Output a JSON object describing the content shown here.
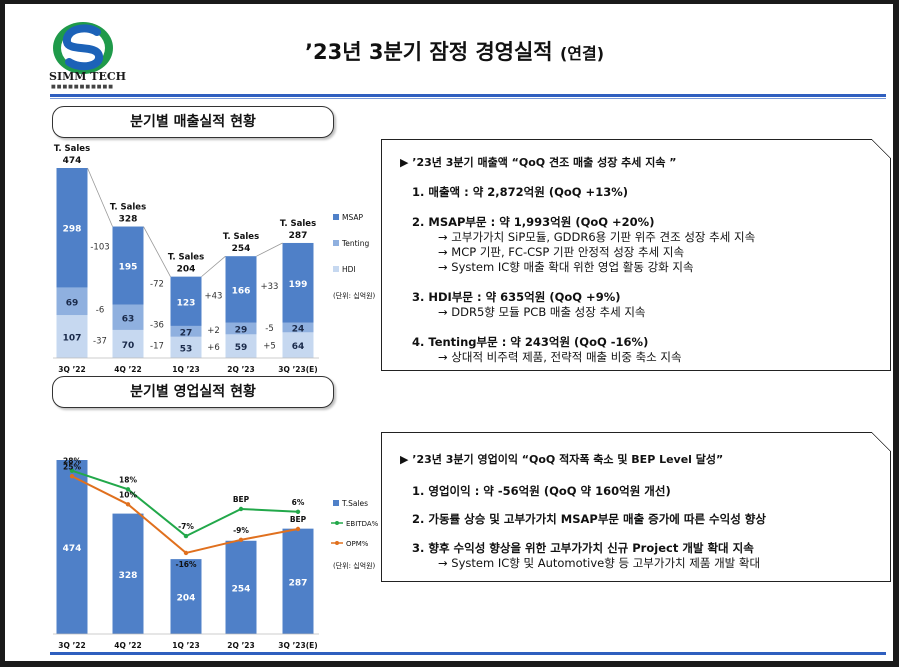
{
  "header": {
    "logo_text": "SIMM TECH",
    "title": "’23년 3분기 잠정 경영실적",
    "title_suffix": "(연결)"
  },
  "sales_section": {
    "heading": "분기별 매출실적 현황",
    "unit": "(단위: 십억원)"
  },
  "op_section": {
    "heading": "분기별 영업실적 현황",
    "unit": "(단위: 십억원)"
  },
  "sales_panel": {
    "headline": "’23년 3분기 매출액 “QoQ 견조 매출 성장 추세 지속 ”",
    "items": [
      {
        "title": "1. 매출액 : 약 2,872억원 (QoQ +13%)",
        "subs": []
      },
      {
        "title": "2. MSAP부문    : 약 1,993억원 (QoQ +20%)",
        "subs": [
          "→ 고부가가치 SiP모듈, GDDR6용 기판 위주 견조 성장 추세 지속",
          "→ MCP 기판, FC-CSP 기판 안정적 성장 추세 지속",
          "→ System IC향 매출 확대 위한 영업 활동 강화 지속"
        ]
      },
      {
        "title": "3. HDI부문      : 약     635억원 (QoQ +9%)",
        "subs": [
          "→ DDR5향 모듈 PCB 매출 성장 추세 지속"
        ]
      },
      {
        "title": "4. Tenting부문 : 약     243억원 (QoQ  -16%)",
        "subs": [
          "→ 상대적 비주력 제품, 전략적 매출 비중 축소 지속"
        ]
      }
    ]
  },
  "op_panel": {
    "headline": "’23년 3분기 영업이익  “QoQ 적자폭 축소 및 BEP Level 달성”",
    "items": [
      {
        "title": "1. 영업이익 : 약 -56억원  (QoQ 약 160억원 개선)",
        "subs": []
      },
      {
        "title": "2. 가동률 상승 및 고부가가치 MSAP부문 매출 증가에 따른 수익성 향상",
        "subs": []
      },
      {
        "title": "3. 향후 수익성 향상을 위한 고부가가치 신규 Project 개발 확대 지속",
        "subs": [
          "→ System IC향 및 Automotive향 등 고부가가치 제품 개발 확대"
        ]
      }
    ]
  },
  "chart_data": [
    {
      "type": "bar",
      "stacked": true,
      "categories": [
        "3Q '22",
        "4Q '22",
        "1Q '23",
        "2Q '23",
        "3Q '23(E)"
      ],
      "series": [
        {
          "name": "MSAP",
          "values": [
            298,
            195,
            123,
            166,
            199
          ],
          "color": "#4f80c8"
        },
        {
          "name": "Tenting",
          "values": [
            69,
            63,
            27,
            29,
            24
          ],
          "color": "#8fb0df"
        },
        {
          "name": "HDI",
          "values": [
            107,
            70,
            53,
            59,
            64
          ],
          "color": "#c6d8f0"
        }
      ],
      "totals_label": "T. Sales",
      "totals": [
        474,
        328,
        204,
        254,
        287
      ],
      "diffs": {
        "MSAP": [
          "-103",
          "-72",
          "+43",
          "+33"
        ],
        "Tenting": [
          "-6",
          "-36",
          "+2",
          "-5"
        ],
        "HDI": [
          "-37",
          "-17",
          "+6",
          "+5"
        ]
      },
      "ylim": [
        0,
        474
      ]
    },
    {
      "type": "bar+line",
      "categories": [
        "3Q '22",
        "4Q '22",
        "1Q '23",
        "2Q '23",
        "3Q '23(E)"
      ],
      "series": [
        {
          "name": "T.Sales",
          "type": "bar",
          "values": [
            474,
            328,
            204,
            254,
            287
          ],
          "color": "#4f80c8"
        },
        {
          "name": "EBITDA%",
          "type": "line",
          "values": [
            28,
            18,
            -7,
            null,
            6
          ],
          "labels": [
            "28%",
            "18%",
            "-7%",
            "BEP",
            "6%"
          ],
          "color": "#22a84a"
        },
        {
          "name": "OPM%",
          "type": "line",
          "values": [
            25,
            10,
            -16,
            -9,
            null
          ],
          "labels": [
            "25%",
            "10%",
            "-16%",
            "-9%",
            "BEP"
          ],
          "color": "#e0701e"
        }
      ]
    }
  ]
}
